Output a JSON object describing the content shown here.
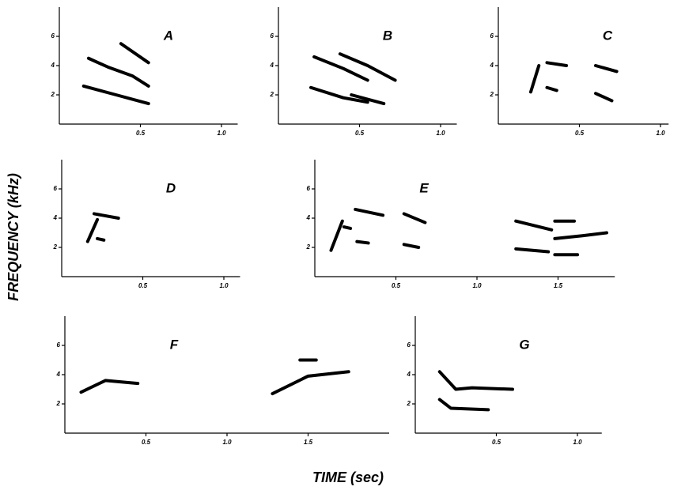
{
  "ylabel": "FREQUENCY (kHz)",
  "xlabel": "TIME (sec)",
  "chart_data": [
    {
      "type": "line",
      "title": "A",
      "xlim": [
        0,
        1.1
      ],
      "ylim": [
        0,
        8
      ],
      "xticks": [
        0.5,
        {
          "value": 1,
          "label": "1.0"
        }
      ],
      "yticks": [
        2,
        4,
        6
      ],
      "series": [
        {
          "color": "#000000",
          "x": [
            0.18,
            0.3,
            0.45,
            0.55
          ],
          "values": [
            4.5,
            3.9,
            3.3,
            2.6
          ]
        },
        {
          "color": "#000000",
          "x": [
            0.15,
            0.35,
            0.55
          ],
          "values": [
            2.6,
            2.0,
            1.4
          ]
        },
        {
          "color": "#000000",
          "x": [
            0.38,
            0.55
          ],
          "values": [
            5.5,
            4.2
          ]
        }
      ]
    },
    {
      "type": "line",
      "title": "B",
      "xlim": [
        0,
        1.1
      ],
      "ylim": [
        0,
        8
      ],
      "xticks": [
        0.5,
        {
          "value": 1,
          "label": "1.0"
        }
      ],
      "yticks": [
        2,
        4,
        6
      ],
      "series": [
        {
          "color": "#000000",
          "x": [
            0.22,
            0.4,
            0.55
          ],
          "values": [
            4.6,
            3.8,
            3.0
          ]
        },
        {
          "color": "#000000",
          "x": [
            0.38,
            0.55,
            0.72
          ],
          "values": [
            4.8,
            4.0,
            3.0
          ]
        },
        {
          "color": "#000000",
          "x": [
            0.2,
            0.4,
            0.55
          ],
          "values": [
            2.5,
            1.8,
            1.5
          ]
        },
        {
          "color": "#000000",
          "x": [
            0.45,
            0.65
          ],
          "values": [
            2.0,
            1.4
          ]
        }
      ]
    },
    {
      "type": "line",
      "title": "C",
      "xlim": [
        0,
        1.05
      ],
      "ylim": [
        0,
        8
      ],
      "xticks": [
        0.5,
        {
          "value": 1,
          "label": "1.0"
        }
      ],
      "yticks": [
        2,
        4,
        6
      ],
      "series": [
        {
          "color": "#000000",
          "x": [
            0.2,
            0.25
          ],
          "values": [
            2.2,
            4.0
          ]
        },
        {
          "color": "#000000",
          "x": [
            0.3,
            0.42
          ],
          "values": [
            4.2,
            4.0
          ]
        },
        {
          "color": "#000000",
          "x": [
            0.3,
            0.36
          ],
          "values": [
            2.5,
            2.3
          ]
        },
        {
          "color": "#000000",
          "x": [
            0.6,
            0.73
          ],
          "values": [
            4.0,
            3.6
          ]
        },
        {
          "color": "#000000",
          "x": [
            0.6,
            0.7
          ],
          "values": [
            2.1,
            1.6
          ]
        }
      ]
    },
    {
      "type": "line",
      "title": "D",
      "xlim": [
        0,
        1.1
      ],
      "ylim": [
        0,
        8
      ],
      "xticks": [
        0.5,
        {
          "value": 1,
          "label": "1.0"
        }
      ],
      "yticks": [
        2,
        4,
        6
      ],
      "series": [
        {
          "color": "#000000",
          "x": [
            0.16,
            0.22
          ],
          "values": [
            2.4,
            3.9
          ]
        },
        {
          "color": "#000000",
          "x": [
            0.2,
            0.35
          ],
          "values": [
            4.3,
            4.0
          ]
        },
        {
          "color": "#000000",
          "x": [
            0.22,
            0.26
          ],
          "values": [
            2.6,
            2.5
          ]
        }
      ]
    },
    {
      "type": "line",
      "title": "E",
      "xlim": [
        0,
        1.85
      ],
      "ylim": [
        0,
        8
      ],
      "xticks": [
        0.5,
        {
          "value": 1,
          "label": "1.0"
        },
        1.5
      ],
      "yticks": [
        2,
        4,
        6
      ],
      "series": [
        {
          "color": "#000000",
          "x": [
            0.1,
            0.17
          ],
          "values": [
            1.8,
            3.8
          ]
        },
        {
          "color": "#000000",
          "x": [
            0.18,
            0.22
          ],
          "values": [
            3.4,
            3.3
          ]
        },
        {
          "color": "#000000",
          "x": [
            0.25,
            0.42
          ],
          "values": [
            4.6,
            4.2
          ]
        },
        {
          "color": "#000000",
          "x": [
            0.26,
            0.33
          ],
          "values": [
            2.4,
            2.3
          ]
        },
        {
          "color": "#000000",
          "x": [
            0.55,
            0.68
          ],
          "values": [
            4.3,
            3.7
          ]
        },
        {
          "color": "#000000",
          "x": [
            0.55,
            0.64
          ],
          "values": [
            2.2,
            2.0
          ]
        },
        {
          "color": "#000000",
          "x": [
            1.24,
            1.46
          ],
          "values": [
            3.8,
            3.2
          ]
        },
        {
          "color": "#000000",
          "x": [
            1.48,
            1.6
          ],
          "values": [
            3.8,
            3.8
          ]
        },
        {
          "color": "#000000",
          "x": [
            1.48,
            1.65,
            1.8
          ],
          "values": [
            2.6,
            2.8,
            3.0
          ]
        },
        {
          "color": "#000000",
          "x": [
            1.24,
            1.44
          ],
          "values": [
            1.9,
            1.7
          ]
        },
        {
          "color": "#000000",
          "x": [
            1.48,
            1.62
          ],
          "values": [
            1.5,
            1.5
          ]
        }
      ]
    },
    {
      "type": "line",
      "title": "F",
      "xlim": [
        0,
        2.0
      ],
      "ylim": [
        0,
        8
      ],
      "xticks": [
        0.5,
        {
          "value": 1,
          "label": "1.0"
        },
        1.5
      ],
      "yticks": [
        2,
        4,
        6
      ],
      "series": [
        {
          "color": "#000000",
          "x": [
            0.1,
            0.25,
            0.45
          ],
          "values": [
            2.8,
            3.6,
            3.4
          ]
        },
        {
          "color": "#000000",
          "x": [
            1.28,
            1.5,
            1.75
          ],
          "values": [
            2.7,
            3.9,
            4.2
          ]
        },
        {
          "color": "#000000",
          "x": [
            1.45,
            1.55
          ],
          "values": [
            5.0,
            5.0
          ]
        }
      ]
    },
    {
      "type": "line",
      "title": "G",
      "xlim": [
        0,
        1.15
      ],
      "ylim": [
        0,
        8
      ],
      "xticks": [
        0.5,
        {
          "value": 1,
          "label": "1.0"
        }
      ],
      "yticks": [
        2,
        4,
        6
      ],
      "series": [
        {
          "color": "#000000",
          "x": [
            0.15,
            0.25,
            0.35,
            0.6
          ],
          "values": [
            4.2,
            3.0,
            3.1,
            3.0
          ]
        },
        {
          "color": "#000000",
          "x": [
            0.15,
            0.22,
            0.45
          ],
          "values": [
            2.3,
            1.7,
            1.6
          ]
        }
      ]
    }
  ]
}
